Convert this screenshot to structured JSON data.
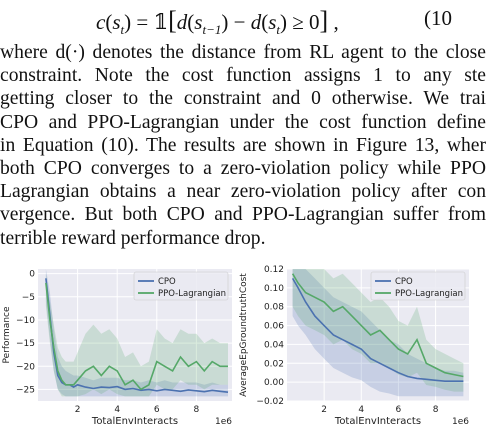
{
  "equation": {
    "text": "c(s_t) = 𝟙[d(s_{t−1}) − d(s_t) ≥ 0] ,",
    "number": "(10"
  },
  "paragraph": {
    "lines": [
      "where d(·) denotes the distance from RL agent to the close",
      "constraint. Note the cost function assigns 1 to any ste",
      "getting closer to the constraint and 0 otherwise. We trai",
      "CPO and PPO-Lagrangian under the cost function define",
      "in Equation (10). The results are shown in Figure 13, wher",
      "both CPO converges to a zero-violation policy while PPO",
      "Lagrangian obtains a near zero-violation policy after con",
      "vergence. But both CPO and PPO-Lagrangian suffer from",
      "terrible reward performance drop."
    ]
  },
  "colors": {
    "cpo": "#4c72b0",
    "ppo": "#55a868"
  },
  "chart_data": [
    {
      "type": "line",
      "xlabel": "TotalEnvInteracts",
      "ylabel": "Performance",
      "x_multiplier": "1e6",
      "xlim": [
        0,
        9.8
      ],
      "ylim": [
        -27.5,
        1
      ],
      "xticks": [
        "2",
        "4",
        "6",
        "8"
      ],
      "yticks": [
        "0",
        "−5",
        "−10",
        "−15",
        "−20",
        "−25"
      ],
      "legend": "top-right",
      "grid": true,
      "series": [
        {
          "name": "CPO",
          "x": [
            0.4,
            0.6,
            0.8,
            1.0,
            1.2,
            1.4,
            1.6,
            1.8,
            2.0,
            2.4,
            2.8,
            3.2,
            3.6,
            4.0,
            4.4,
            4.8,
            5.2,
            5.6,
            6.0,
            6.4,
            6.8,
            7.2,
            7.6,
            8.0,
            8.4,
            8.8,
            9.2,
            9.6
          ],
          "y": [
            -1,
            -9,
            -17,
            -22,
            -23.5,
            -24,
            -24,
            -24.5,
            -24,
            -24.5,
            -24.8,
            -24.5,
            -24.6,
            -24.4,
            -25,
            -24.8,
            -25.2,
            -25,
            -25.3,
            -25,
            -25.2,
            -25.4,
            -25.1,
            -25.3,
            -25.5,
            -25.2,
            -25.4,
            -25.6
          ],
          "lower": [
            -6,
            -14,
            -21,
            -25,
            -26,
            -26.5,
            -26.5,
            -26.5,
            -26.5,
            -26.5,
            -26.5,
            -26.5,
            -26.5,
            -26.5,
            -26.5,
            -26.5,
            -26.5,
            -26.5,
            -26.5,
            -26.5,
            -26.5,
            -26.5,
            -26.5,
            -26.5,
            -26.5,
            -26.5,
            -26.5,
            -26.5
          ],
          "upper": [
            1,
            -4,
            -12,
            -18,
            -20,
            -21,
            -21.5,
            -22,
            -22,
            -22.5,
            -23,
            -22.5,
            -22.5,
            -22.5,
            -23,
            -23,
            -23.5,
            -23,
            -23.5,
            -23,
            -23.5,
            -23.5,
            -23.5,
            -23.5,
            -24,
            -23.5,
            -24,
            -24
          ]
        },
        {
          "name": "PPO-Lagrangian",
          "x": [
            0.4,
            0.6,
            0.8,
            1.0,
            1.2,
            1.4,
            1.6,
            1.8,
            2.0,
            2.4,
            2.8,
            3.2,
            3.6,
            4.0,
            4.4,
            4.8,
            5.2,
            5.6,
            6.0,
            6.4,
            6.8,
            7.2,
            7.6,
            8.0,
            8.4,
            8.8,
            9.2,
            9.6
          ],
          "y": [
            -2,
            -10,
            -16,
            -21,
            -23,
            -24,
            -24,
            -24,
            -23,
            -21,
            -20,
            -22,
            -20,
            -21,
            -24,
            -23,
            -25,
            -24,
            -19,
            -20,
            -21,
            -18,
            -20,
            -19,
            -21,
            -19,
            -20,
            -20
          ],
          "lower": [
            -7,
            -15,
            -21,
            -25,
            -26.5,
            -26.5,
            -26.5,
            -26.5,
            -26.5,
            -26,
            -25,
            -26,
            -25,
            -26,
            -26.5,
            -26.5,
            -26.5,
            -26.5,
            -24,
            -25,
            -25,
            -23,
            -24,
            -24,
            -25,
            -24,
            -24,
            -24
          ],
          "upper": [
            0,
            -6,
            -11,
            -16,
            -18,
            -19,
            -19,
            -19,
            -17,
            -13,
            -11,
            -13,
            -12,
            -14,
            -18,
            -17,
            -20,
            -19,
            -12,
            -14,
            -15,
            -12,
            -13,
            -13,
            -15,
            -14,
            -15,
            -15
          ]
        }
      ]
    },
    {
      "type": "line",
      "xlabel": "TotalEnvInteracts",
      "ylabel": "AverageEpGroundtruthCost",
      "x_multiplier": "1e6",
      "xlim": [
        0,
        9.8
      ],
      "ylim": [
        -0.02,
        0.12
      ],
      "xticks": [
        "2",
        "4",
        "6",
        "8"
      ],
      "yticks": [
        "0.12",
        "0.10",
        "0.08",
        "0.06",
        "0.04",
        "0.02",
        "0.00",
        "−0.02"
      ],
      "legend": "top-right",
      "grid": true,
      "series": [
        {
          "name": "CPO",
          "x": [
            0.3,
            0.6,
            1.0,
            1.5,
            2.0,
            2.5,
            3.0,
            3.5,
            4.0,
            4.5,
            5.0,
            5.5,
            6.0,
            6.5,
            7.0,
            7.5,
            8.0,
            8.5,
            9.0,
            9.5
          ],
          "y": [
            0.11,
            0.1,
            0.085,
            0.07,
            0.06,
            0.05,
            0.045,
            0.04,
            0.035,
            0.025,
            0.02,
            0.015,
            0.01,
            0.006,
            0.004,
            0.003,
            0.002,
            0.001,
            0.001,
            0.001
          ],
          "lower": [
            0.07,
            0.06,
            0.05,
            0.035,
            0.025,
            0.015,
            0.01,
            0.005,
            0.002,
            -0.005,
            -0.01,
            -0.012,
            -0.015,
            -0.015,
            -0.015,
            -0.015,
            -0.015,
            -0.015,
            -0.015,
            -0.015
          ],
          "upper": [
            0.12,
            0.12,
            0.12,
            0.11,
            0.1,
            0.09,
            0.085,
            0.08,
            0.075,
            0.065,
            0.055,
            0.045,
            0.04,
            0.03,
            0.025,
            0.02,
            0.015,
            0.012,
            0.012,
            0.01
          ]
        },
        {
          "name": "PPO-Lagrangian",
          "x": [
            0.3,
            0.6,
            1.0,
            1.5,
            2.0,
            2.5,
            3.0,
            3.5,
            4.0,
            4.5,
            5.0,
            5.5,
            6.0,
            6.5,
            7.0,
            7.5,
            8.0,
            8.5,
            9.0,
            9.5
          ],
          "y": [
            0.115,
            0.105,
            0.095,
            0.09,
            0.085,
            0.075,
            0.08,
            0.07,
            0.06,
            0.05,
            0.055,
            0.045,
            0.035,
            0.03,
            0.045,
            0.02,
            0.015,
            0.01,
            0.008,
            0.006
          ],
          "lower": [
            0.08,
            0.07,
            0.06,
            0.055,
            0.05,
            0.04,
            0.045,
            0.035,
            0.03,
            0.02,
            0.02,
            0.015,
            0.008,
            0.005,
            0.01,
            -0.003,
            -0.005,
            -0.008,
            -0.01,
            -0.01
          ],
          "upper": [
            0.12,
            0.12,
            0.12,
            0.12,
            0.12,
            0.11,
            0.115,
            0.105,
            0.095,
            0.085,
            0.09,
            0.08,
            0.065,
            0.06,
            0.08,
            0.045,
            0.035,
            0.03,
            0.025,
            0.02
          ]
        }
      ]
    }
  ]
}
